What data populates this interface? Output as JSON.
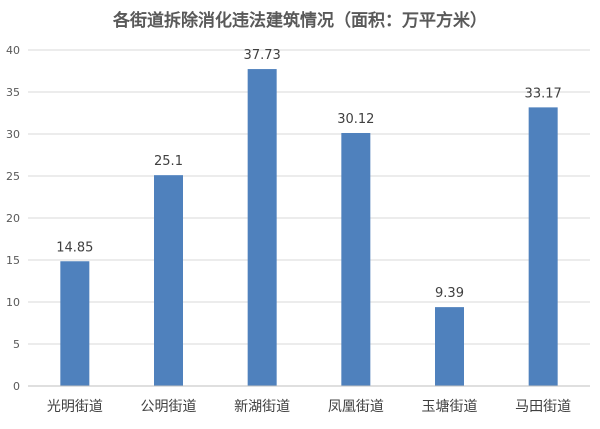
{
  "chart_data": {
    "type": "bar",
    "title": "各街道拆除消化违法建筑情况（面积：万平方米）",
    "xlabel": "",
    "ylabel": "",
    "categories": [
      "光明街道",
      "公明街道",
      "新湖街道",
      "凤凰街道",
      "玉塘街道",
      "马田街道"
    ],
    "values": [
      14.85,
      25.1,
      37.73,
      30.12,
      9.39,
      33.17
    ],
    "value_labels": [
      "14.85",
      "25.1",
      "37.73",
      "30.12",
      "9.39",
      "33.17"
    ],
    "ylim": [
      0,
      40
    ],
    "yticks": [
      0,
      5,
      10,
      15,
      20,
      25,
      30,
      35,
      40
    ],
    "grid": true,
    "legend": "none",
    "bar_color": "#4f81bd"
  }
}
